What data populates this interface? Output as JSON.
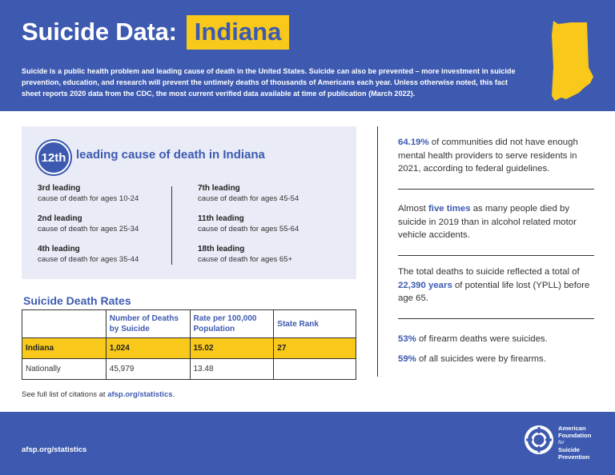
{
  "header": {
    "title": "Suicide Data:",
    "state": "Indiana",
    "intro": "Suicide is a public health problem and leading cause of death in the United States. Suicide can also be prevented – more investment in suicide prevention, education, and research will prevent the untimely deaths of thousands of Americans each year. Unless otherwise noted, this fact sheet reports 2020 data from the CDC, the most current verified data available at time of publication (March 2022).",
    "map_icon": "indiana-state-outline-icon"
  },
  "ranking": {
    "rank": "12th",
    "heading": "leading cause of death in Indiana",
    "left": [
      {
        "title": "3rd leading",
        "sub": "cause of death for ages 10-24"
      },
      {
        "title": "2nd leading",
        "sub": "cause of death for ages 25-34"
      },
      {
        "title": "4th leading",
        "sub": "cause of death for ages 35-44"
      }
    ],
    "right": [
      {
        "title": "7th leading",
        "sub": "cause of death for ages 45-54"
      },
      {
        "title": "11th leading",
        "sub": "cause of death for ages 55-64"
      },
      {
        "title": "18th leading",
        "sub": "cause of death for ages 65+"
      }
    ]
  },
  "rates": {
    "title": "Suicide Death Rates",
    "headers": [
      "",
      "Number of Deaths by Suicide",
      "Rate per 100,000 Population",
      "State Rank"
    ],
    "rows": [
      [
        "Indiana",
        "1,024",
        "15.02",
        "27"
      ],
      [
        "Nationally",
        "45,979",
        "13.48",
        ""
      ]
    ]
  },
  "citation": {
    "prefix": "See full list of citations at ",
    "link": "afsp.org/statistics",
    "suffix": "."
  },
  "facts": [
    {
      "highlight": "64.19%",
      "before": "",
      "after": " of communities did not have enough mental health providers to serve residents in 2021, according to federal guidelines."
    },
    {
      "before": "Almost ",
      "highlight": "five times",
      "after": " as many people died by suicide in 2019 than in alcohol related motor vehicle accidents."
    },
    {
      "before": "The total deaths to suicide reflected a total of ",
      "highlight": "22,390 years",
      "after": " of potential life lost (YPLL) before age 65."
    },
    {
      "before": "",
      "highlight": "53%",
      "after": " of firearm deaths were suicides."
    },
    {
      "before": "",
      "highlight": "59%",
      "after": " of all suicides were by firearms."
    }
  ],
  "footer": {
    "url": "afsp.org/statistics",
    "org_line1": "American",
    "org_line2": "Foundation",
    "org_line3": "for",
    "org_line4": "Suicide",
    "org_line5": "Prevention"
  },
  "colors": {
    "brand_blue": "#3d5ab0",
    "brand_yellow": "#f8c81b",
    "panel_bg": "#e9ecf6"
  }
}
